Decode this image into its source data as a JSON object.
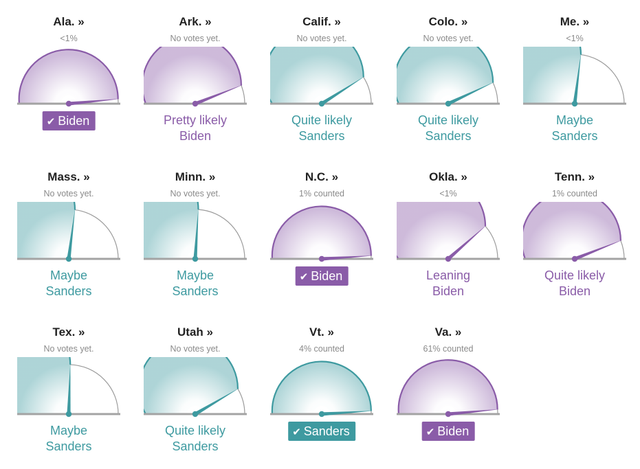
{
  "colors": {
    "biden": "#8a5ca8",
    "sanders": "#3e9aa0",
    "baseline": "#a3a3a3",
    "outline": "#9b9b9b"
  },
  "check_glyph": "✔",
  "states": [
    {
      "name": "Ala. »",
      "status": "<1%",
      "lean": "biden",
      "needle": 0.97,
      "verdict": {
        "type": "winner",
        "text": "Biden"
      }
    },
    {
      "name": "Ark. »",
      "status": "No votes yet.",
      "lean": "biden",
      "needle": 0.88,
      "verdict": {
        "type": "forecast",
        "lines": [
          "Pretty likely",
          "Biden"
        ]
      }
    },
    {
      "name": "Calif. »",
      "status": "No votes yet.",
      "lean": "sanders",
      "needle": 0.82,
      "verdict": {
        "type": "forecast",
        "lines": [
          "Quite likely",
          "Sanders"
        ]
      }
    },
    {
      "name": "Colo. »",
      "status": "No votes yet.",
      "lean": "sanders",
      "needle": 0.86,
      "verdict": {
        "type": "forecast",
        "lines": [
          "Quite likely",
          "Sanders"
        ]
      }
    },
    {
      "name": "Me. »",
      "status": "<1%",
      "lean": "sanders",
      "needle": 0.54,
      "verdict": {
        "type": "forecast",
        "lines": [
          "Maybe",
          "Sanders"
        ]
      }
    },
    {
      "name": "Mass. »",
      "status": "No votes yet.",
      "lean": "sanders",
      "needle": 0.54,
      "verdict": {
        "type": "forecast",
        "lines": [
          "Maybe",
          "Sanders"
        ]
      }
    },
    {
      "name": "Minn. »",
      "status": "No votes yet.",
      "lean": "sanders",
      "needle": 0.52,
      "verdict": {
        "type": "forecast",
        "lines": [
          "Maybe",
          "Sanders"
        ]
      }
    },
    {
      "name": "N.C. »",
      "status": "1% counted",
      "lean": "biden",
      "needle": 0.98,
      "verdict": {
        "type": "winner",
        "text": "Biden"
      }
    },
    {
      "name": "Okla. »",
      "status": "<1%",
      "lean": "biden",
      "needle": 0.77,
      "verdict": {
        "type": "forecast",
        "lines": [
          "Leaning",
          "Biden"
        ]
      }
    },
    {
      "name": "Tenn. »",
      "status": "1% counted",
      "lean": "biden",
      "needle": 0.88,
      "verdict": {
        "type": "forecast",
        "lines": [
          "Quite likely",
          "Biden"
        ]
      }
    },
    {
      "name": "Tex. »",
      "status": "No votes yet.",
      "lean": "sanders",
      "needle": 0.51,
      "verdict": {
        "type": "forecast",
        "lines": [
          "Maybe",
          "Sanders"
        ]
      }
    },
    {
      "name": "Utah »",
      "status": "No votes yet.",
      "lean": "sanders",
      "needle": 0.83,
      "verdict": {
        "type": "forecast",
        "lines": [
          "Quite likely",
          "Sanders"
        ]
      }
    },
    {
      "name": "Vt. »",
      "status": "4% counted",
      "lean": "sanders",
      "needle": 0.98,
      "verdict": {
        "type": "winner",
        "text": "Sanders"
      }
    },
    {
      "name": "Va. »",
      "status": "61% counted",
      "lean": "biden",
      "needle": 0.97,
      "verdict": {
        "type": "winner",
        "text": "Biden"
      }
    }
  ],
  "chart_data": {
    "type": "gauge",
    "scale": "0 = full left, 1 = full right of semicircle",
    "gauges": [
      {
        "state": "Ala.",
        "needle": 0.97,
        "leader": "Biden"
      },
      {
        "state": "Ark.",
        "needle": 0.88,
        "leader": "Biden"
      },
      {
        "state": "Calif.",
        "needle": 0.82,
        "leader": "Sanders"
      },
      {
        "state": "Colo.",
        "needle": 0.86,
        "leader": "Sanders"
      },
      {
        "state": "Me.",
        "needle": 0.54,
        "leader": "Sanders"
      },
      {
        "state": "Mass.",
        "needle": 0.54,
        "leader": "Sanders"
      },
      {
        "state": "Minn.",
        "needle": 0.52,
        "leader": "Sanders"
      },
      {
        "state": "N.C.",
        "needle": 0.98,
        "leader": "Biden"
      },
      {
        "state": "Okla.",
        "needle": 0.77,
        "leader": "Biden"
      },
      {
        "state": "Tenn.",
        "needle": 0.88,
        "leader": "Biden"
      },
      {
        "state": "Tex.",
        "needle": 0.51,
        "leader": "Sanders"
      },
      {
        "state": "Utah",
        "needle": 0.83,
        "leader": "Sanders"
      },
      {
        "state": "Vt.",
        "needle": 0.98,
        "leader": "Sanders"
      },
      {
        "state": "Va.",
        "needle": 0.97,
        "leader": "Biden"
      }
    ]
  }
}
